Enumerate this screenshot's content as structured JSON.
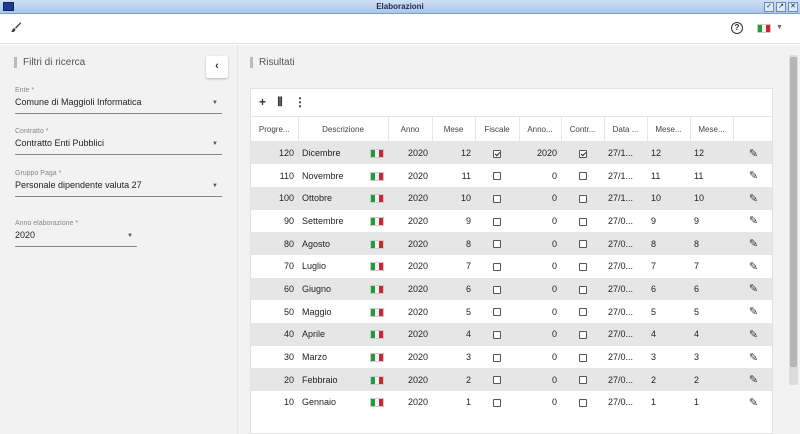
{
  "window": {
    "title": "Elaborazioni",
    "buttons": [
      "✓",
      "↗",
      "✕"
    ]
  },
  "toolbar": {
    "help_icon": "?",
    "language_caret": "▼"
  },
  "filters": {
    "title": "Filtri di ricerca",
    "collapse_icon": "‹",
    "ente": {
      "label": "Ente *",
      "value": "Comune di Maggioli Informatica"
    },
    "contratto": {
      "label": "Contratto *",
      "value": "Contratto Enti Pubblici"
    },
    "gruppo_paga": {
      "label": "Gruppo Paga *",
      "value": "Personale dipendente valuta 27"
    },
    "anno": {
      "label": "Anno elaborazione *",
      "value": "2020"
    }
  },
  "results": {
    "title": "Risultati",
    "tools": {
      "add": "+",
      "columns": "⦀",
      "more": "⋮"
    },
    "columns": [
      "Progre...",
      "Descrizione",
      "Anno",
      "Mese",
      "Fiscale",
      "Anno...",
      "Contr...",
      "Data ...",
      "Mese...",
      "Mese..."
    ],
    "rows": [
      {
        "progr": "120",
        "desc": "Dicembre",
        "anno": "2020",
        "mese": "12",
        "fiscale": true,
        "anno2": "2020",
        "contr": true,
        "data": "27/1...",
        "mese2": "12",
        "mese3": "12"
      },
      {
        "progr": "110",
        "desc": "Novembre",
        "anno": "2020",
        "mese": "11",
        "fiscale": false,
        "anno2": "0",
        "contr": false,
        "data": "27/1...",
        "mese2": "11",
        "mese3": "11"
      },
      {
        "progr": "100",
        "desc": "Ottobre",
        "anno": "2020",
        "mese": "10",
        "fiscale": false,
        "anno2": "0",
        "contr": false,
        "data": "27/1...",
        "mese2": "10",
        "mese3": "10"
      },
      {
        "progr": "90",
        "desc": "Settembre",
        "anno": "2020",
        "mese": "9",
        "fiscale": false,
        "anno2": "0",
        "contr": false,
        "data": "27/0...",
        "mese2": "9",
        "mese3": "9"
      },
      {
        "progr": "80",
        "desc": "Agosto",
        "anno": "2020",
        "mese": "8",
        "fiscale": false,
        "anno2": "0",
        "contr": false,
        "data": "27/0...",
        "mese2": "8",
        "mese3": "8"
      },
      {
        "progr": "70",
        "desc": "Luglio",
        "anno": "2020",
        "mese": "7",
        "fiscale": false,
        "anno2": "0",
        "contr": false,
        "data": "27/0...",
        "mese2": "7",
        "mese3": "7"
      },
      {
        "progr": "60",
        "desc": "Giugno",
        "anno": "2020",
        "mese": "6",
        "fiscale": false,
        "anno2": "0",
        "contr": false,
        "data": "27/0...",
        "mese2": "6",
        "mese3": "6"
      },
      {
        "progr": "50",
        "desc": "Maggio",
        "anno": "2020",
        "mese": "5",
        "fiscale": false,
        "anno2": "0",
        "contr": false,
        "data": "27/0...",
        "mese2": "5",
        "mese3": "5"
      },
      {
        "progr": "40",
        "desc": "Aprile",
        "anno": "2020",
        "mese": "4",
        "fiscale": false,
        "anno2": "0",
        "contr": false,
        "data": "27/0...",
        "mese2": "4",
        "mese3": "4"
      },
      {
        "progr": "30",
        "desc": "Marzo",
        "anno": "2020",
        "mese": "3",
        "fiscale": false,
        "anno2": "0",
        "contr": false,
        "data": "27/0...",
        "mese2": "3",
        "mese3": "3"
      },
      {
        "progr": "20",
        "desc": "Febbraio",
        "anno": "2020",
        "mese": "2",
        "fiscale": false,
        "anno2": "0",
        "contr": false,
        "data": "27/0...",
        "mese2": "2",
        "mese3": "2"
      },
      {
        "progr": "10",
        "desc": "Gennaio",
        "anno": "2020",
        "mese": "1",
        "fiscale": false,
        "anno2": "0",
        "contr": false,
        "data": "27/0...",
        "mese2": "1",
        "mese3": "1"
      }
    ]
  }
}
